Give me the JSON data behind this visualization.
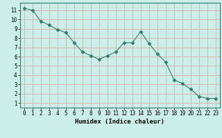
{
  "x": [
    0,
    1,
    2,
    3,
    4,
    5,
    6,
    7,
    8,
    9,
    10,
    11,
    12,
    13,
    14,
    15,
    16,
    17,
    18,
    19,
    20,
    21,
    22,
    23
  ],
  "y": [
    11.2,
    11.0,
    9.8,
    9.4,
    8.9,
    8.6,
    7.5,
    6.5,
    6.1,
    5.7,
    6.1,
    6.5,
    7.5,
    7.5,
    8.7,
    7.4,
    6.3,
    5.4,
    3.5,
    3.1,
    2.5,
    1.7,
    1.5,
    1.5
  ],
  "line_color": "#2d7d6e",
  "marker": "D",
  "marker_size": 2.5,
  "bg_color": "#cceee8",
  "grid_color": "#d4a0a0",
  "xlabel": "Humidex (Indice chaleur)",
  "xlim": [
    -0.5,
    23.5
  ],
  "ylim": [
    0.5,
    11.8
  ],
  "yticks": [
    1,
    2,
    3,
    4,
    5,
    6,
    7,
    8,
    9,
    10,
    11
  ],
  "xticks": [
    0,
    1,
    2,
    3,
    4,
    5,
    6,
    7,
    8,
    9,
    10,
    11,
    12,
    13,
    14,
    15,
    16,
    17,
    18,
    19,
    20,
    21,
    22,
    23
  ],
  "tick_fontsize": 5.5,
  "xlabel_fontsize": 6.5,
  "linewidth": 0.8
}
